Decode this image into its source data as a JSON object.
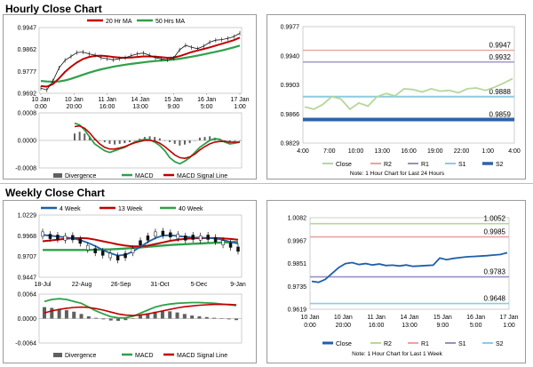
{
  "sections": {
    "hourly_title": "Hourly Close Chart",
    "weekly_title": "Weekly Close Chart"
  },
  "colors": {
    "ma_short": "#c00000",
    "ma_long": "#2ea04a",
    "price": "#111111",
    "divergence": "#606060",
    "macd": "#2ea04a",
    "signal": "#c00000",
    "close_hourly": "#b6d79a",
    "close_weekly": "#1f5fa8",
    "r2_hourly": "#e9a3a3",
    "r1_hourly": "#9b8fc0",
    "s1_hourly": "#8ccbe0",
    "s2_hourly": "#2e64a8",
    "r2_weekly": "#b6d79a",
    "r1_weekly": "#e9a3a3",
    "s1_weekly": "#9b8fc0",
    "s2_weekly": "#8ccbe0"
  },
  "chart_data": [
    {
      "id": "hourly_price",
      "type": "line",
      "legend": [
        "20 Hr MA",
        "50 Hrs MA"
      ],
      "ylim": [
        0.9692,
        0.9947
      ],
      "yticks": [
        "0.9947",
        "0.9862",
        "0.9777",
        "0.9692"
      ],
      "xticks": [
        [
          "10 Jan",
          "0:00"
        ],
        [
          "10 Jan",
          "20:00"
        ],
        [
          "11 Jan",
          "16:00"
        ],
        [
          "14 Jan",
          "13:00"
        ],
        [
          "15 Jan",
          "9:00"
        ],
        [
          "16 Jan",
          "5:00"
        ],
        [
          "17 Jan",
          "1:00"
        ]
      ],
      "series": [
        {
          "name": "Price",
          "values": [
            0.9712,
            0.9705,
            0.974,
            0.979,
            0.982,
            0.9835,
            0.985,
            0.9852,
            0.9845,
            0.984,
            0.983,
            0.9826,
            0.9822,
            0.9826,
            0.983,
            0.9838,
            0.9845,
            0.9848,
            0.984,
            0.983,
            0.9825,
            0.9822,
            0.9828,
            0.986,
            0.9878,
            0.987,
            0.9865,
            0.9875,
            0.989,
            0.9898,
            0.99,
            0.9905,
            0.9912,
            0.9925
          ]
        },
        {
          "name": "20 Hr MA",
          "values": [
            0.972,
            0.9718,
            0.9728,
            0.975,
            0.9775,
            0.9795,
            0.9812,
            0.9825,
            0.9833,
            0.9837,
            0.9838,
            0.9836,
            0.9833,
            0.9831,
            0.983,
            0.9831,
            0.9833,
            0.9835,
            0.9835,
            0.9834,
            0.9832,
            0.983,
            0.9831,
            0.9836,
            0.9844,
            0.9852,
            0.9858,
            0.9864,
            0.987,
            0.9877,
            0.9884,
            0.9891,
            0.9898,
            0.9908
          ]
        },
        {
          "name": "50 Hrs MA",
          "values": [
            0.974,
            0.9738,
            0.9737,
            0.9738,
            0.9742,
            0.9748,
            0.9756,
            0.9764,
            0.9772,
            0.9779,
            0.9785,
            0.979,
            0.9795,
            0.9799,
            0.9803,
            0.9806,
            0.9809,
            0.9812,
            0.9815,
            0.9817,
            0.9819,
            0.9821,
            0.9823,
            0.9826,
            0.983,
            0.9834,
            0.9838,
            0.9843,
            0.9848,
            0.9853,
            0.9858,
            0.9864,
            0.987,
            0.9877
          ]
        }
      ]
    },
    {
      "id": "hourly_macd",
      "type": "bar",
      "ylim": [
        -0.0008,
        0.0008
      ],
      "yticks": [
        "0.0008",
        "0.0000",
        "-0.0008"
      ],
      "legend": [
        "Divergence",
        "MACD",
        "MACD Signal Line"
      ],
      "series": [
        {
          "name": "Divergence",
          "values": [
            0.0002,
            0.00025,
            0.0002,
            0.00012,
            5e-05,
            0.0,
            -5e-05,
            -0.0001,
            -0.00012,
            -0.0001,
            -8e-05,
            -5e-05,
            0.0,
            5e-05,
            0.0001,
            0.00012,
            0.0001,
            6e-05,
            0.0,
            -5e-05,
            -0.0001,
            -0.00015,
            -0.00012,
            -8e-05,
            0.0,
            8e-05,
            0.0001,
            0.00012,
            8e-05,
            3e-05,
            0.0,
            -3e-05,
            -2e-05,
            0.0
          ]
        },
        {
          "name": "MACD",
          "values": [
            0.0005,
            0.00045,
            0.0003,
            0.0001,
            -0.0001,
            -0.0002,
            -0.0003,
            -0.00035,
            -0.0003,
            -0.00025,
            -0.0002,
            -0.00012,
            -5e-05,
            0.0,
            3e-05,
            2e-05,
            -5e-05,
            -0.00015,
            -0.0003,
            -0.0005,
            -0.00062,
            -0.00068,
            -0.0006,
            -0.0005,
            -0.00035,
            -0.0002,
            -0.0001,
            0.0,
            5e-05,
            3e-05,
            -5e-05,
            -0.0001,
            -8e-05,
            -5e-05
          ]
        },
        {
          "name": "MACD Signal Line",
          "values": [
            0.0004,
            0.00042,
            0.00035,
            0.00022,
            5e-05,
            -0.0001,
            -0.0002,
            -0.00025,
            -0.00025,
            -0.00022,
            -0.00018,
            -0.00012,
            -7e-05,
            -3e-05,
            0.0,
            0.0,
            -2e-05,
            -8e-05,
            -0.00018,
            -0.0003,
            -0.00042,
            -0.0005,
            -0.00052,
            -0.00048,
            -0.0004,
            -0.00028,
            -0.00018,
            -0.0001,
            -5e-05,
            -3e-05,
            -3e-05,
            -5e-05,
            -5e-05,
            -5e-05
          ]
        }
      ]
    },
    {
      "id": "hourly_pivot",
      "type": "line",
      "ylim": [
        0.9829,
        0.9977
      ],
      "yticks": [
        "0.9977",
        "0.9940",
        "0.9903",
        "0.9866",
        "0.9829"
      ],
      "xticks": [
        "4:00",
        "7:00",
        "10:00",
        "13:00",
        "16:00",
        "19:00",
        "22:00",
        "1:00",
        "4:00"
      ],
      "levels": [
        {
          "name": "R2",
          "value": 0.9947,
          "label": "0.9947"
        },
        {
          "name": "R1",
          "value": 0.9932,
          "label": "0.9932"
        },
        {
          "name": "S1",
          "value": 0.9888,
          "label": "0.9888"
        },
        {
          "name": "S2",
          "value": 0.9859,
          "label": "0.9859"
        }
      ],
      "series": [
        {
          "name": "Close",
          "values": [
            0.9875,
            0.9872,
            0.9878,
            0.9888,
            0.9885,
            0.9872,
            0.988,
            0.9876,
            0.9888,
            0.9892,
            0.9889,
            0.9898,
            0.9897,
            0.9894,
            0.9898,
            0.9895,
            0.9896,
            0.9893,
            0.9898,
            0.9899,
            0.9896,
            0.99,
            0.9905,
            0.9911
          ]
        }
      ],
      "legend": [
        "Close",
        "R2",
        "R1",
        "S1",
        "S2"
      ],
      "note": "Note: 1 Hour Chart for Last 24 Hours"
    },
    {
      "id": "weekly_price",
      "type": "line",
      "legend": [
        "4 Week",
        "13 Week",
        "40 Week"
      ],
      "ylim": [
        0.9447,
        1.0229
      ],
      "yticks": [
        "1.0229",
        "0.9968",
        "0.9707",
        "0.9447"
      ],
      "xticks": [
        "18-Jul",
        "22-Aug",
        "26-Sep",
        "31-Oct",
        "5-Dec",
        "9-Jan"
      ],
      "series": [
        {
          "name": "Price",
          "values": [
            0.999,
            0.996,
            0.995,
            0.994,
            0.9945,
            0.99,
            0.982,
            0.978,
            0.975,
            0.972,
            0.969,
            0.972,
            0.978,
            0.988,
            0.994,
            0.999,
            1.0,
            0.998,
            0.996,
            0.994,
            0.995,
            0.994,
            0.995,
            0.992,
            0.988,
            0.985,
            0.98
          ]
        },
        {
          "name": "4 Week",
          "values": [
            0.998,
            0.997,
            0.996,
            0.995,
            0.9935,
            0.9915,
            0.988,
            0.984,
            0.979,
            0.975,
            0.972,
            0.973,
            0.977,
            0.983,
            0.989,
            0.994,
            0.997,
            0.9975,
            0.9965,
            0.9955,
            0.9948,
            0.9945,
            0.994,
            0.9935,
            0.9915,
            0.989,
            0.987
          ]
        },
        {
          "name": "13 Week",
          "values": [
            0.99,
            0.991,
            0.992,
            0.993,
            0.9938,
            0.994,
            0.9935,
            0.992,
            0.99,
            0.988,
            0.986,
            0.9845,
            0.9835,
            0.9835,
            0.9845,
            0.9865,
            0.9885,
            0.9905,
            0.992,
            0.993,
            0.9935,
            0.9938,
            0.994,
            0.994,
            0.9935,
            0.9928,
            0.992
          ]
        },
        {
          "name": "40 Week",
          "values": [
            0.979,
            0.979,
            0.979,
            0.979,
            0.979,
            0.979,
            0.979,
            0.9792,
            0.9795,
            0.9798,
            0.9802,
            0.9808,
            0.9815,
            0.9822,
            0.983,
            0.9838,
            0.9846,
            0.9852,
            0.9858,
            0.9863,
            0.9868,
            0.9872,
            0.9876,
            0.988,
            0.9884,
            0.9888,
            0.9892
          ]
        }
      ]
    },
    {
      "id": "weekly_macd",
      "type": "bar",
      "ylim": [
        -0.0064,
        0.0064
      ],
      "yticks": [
        "0.0064",
        "0.0000",
        "-0.0064"
      ],
      "legend": [
        "Divergence",
        "MACD",
        "MACD Signal Line"
      ],
      "series": [
        {
          "name": "Divergence",
          "values": [
            0.003,
            0.0028,
            0.0025,
            0.0022,
            0.0018,
            0.0012,
            0.0006,
            0.0002,
            -0.0002,
            -0.0005,
            -0.0006,
            -0.0004,
            0.0001,
            0.0008,
            0.0014,
            0.0018,
            0.002,
            0.0019,
            0.0016,
            0.0012,
            0.0008,
            0.0006,
            0.0004,
            0.0002,
            0.0,
            -0.0002,
            -0.0004
          ]
        },
        {
          "name": "MACD",
          "values": [
            0.0045,
            0.005,
            0.0052,
            0.005,
            0.0045,
            0.004,
            0.003,
            0.002,
            0.0012,
            0.0005,
            0.0002,
            0.0002,
            0.0006,
            0.0014,
            0.0022,
            0.003,
            0.0035,
            0.0038,
            0.004,
            0.0041,
            0.0042,
            0.0042,
            0.0041,
            0.004,
            0.0038,
            0.0036,
            0.0034
          ]
        },
        {
          "name": "MACD Signal Line",
          "values": [
            0.0015,
            0.002,
            0.0024,
            0.0027,
            0.0029,
            0.003,
            0.0029,
            0.0026,
            0.0022,
            0.0017,
            0.0012,
            0.0009,
            0.0008,
            0.0009,
            0.0012,
            0.0016,
            0.002,
            0.0024,
            0.0028,
            0.0031,
            0.0033,
            0.0035,
            0.0036,
            0.0037,
            0.0037,
            0.0037,
            0.0036
          ]
        }
      ]
    },
    {
      "id": "weekly_pivot",
      "type": "line",
      "ylim": [
        0.9619,
        1.0082
      ],
      "yticks": [
        "1.0082",
        "0.9967",
        "0.9851",
        "0.9735",
        "0.9619"
      ],
      "xticks": [
        [
          "10 Jan",
          "0:00"
        ],
        [
          "10 Jan",
          "20:00"
        ],
        [
          "11 Jan",
          "16:00"
        ],
        [
          "14 Jan",
          "13:00"
        ],
        [
          "15 Jan",
          "9:00"
        ],
        [
          "16 Jan",
          "5:00"
        ],
        [
          "17 Jan",
          "1:00"
        ]
      ],
      "levels": [
        {
          "name": "R2",
          "value": 1.0052,
          "label": "1.0052"
        },
        {
          "name": "R1",
          "value": 0.9985,
          "label": "0.9985"
        },
        {
          "name": "S1",
          "value": 0.9783,
          "label": "0.9783"
        },
        {
          "name": "S2",
          "value": 0.9648,
          "label": "0.9648"
        }
      ],
      "series": [
        {
          "name": "Close",
          "values": [
            0.976,
            0.9755,
            0.977,
            0.98,
            0.983,
            0.985,
            0.9855,
            0.9845,
            0.985,
            0.9843,
            0.9848,
            0.984,
            0.9842,
            0.9838,
            0.9843,
            0.9836,
            0.9838,
            0.984,
            0.9842,
            0.9878,
            0.987,
            0.9876,
            0.988,
            0.9884,
            0.9886,
            0.9888,
            0.989,
            0.9893,
            0.9896,
            0.9905
          ]
        }
      ],
      "legend": [
        "Close",
        "R2",
        "R1",
        "S1",
        "S2"
      ],
      "note": "Note: 1 Hour Chart for Last 1 Week"
    }
  ]
}
